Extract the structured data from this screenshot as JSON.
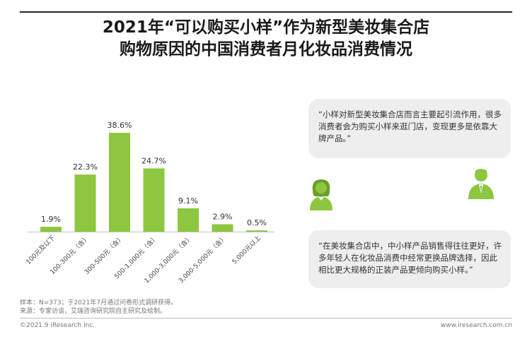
{
  "title_line1": "2021年“可以购买小样”作为新型美妆集合店",
  "title_line2": "购物原因的中国消费者月化妆品消费情况",
  "chart_data": {
    "type": "bar",
    "categories": [
      "100元及以下",
      "100-300元（含）",
      "300-500元（含）",
      "500-1,000元（含）",
      "1,000-3,000元（含）",
      "3,000-5,000元（含）",
      "5,000元以上"
    ],
    "values": [
      1.9,
      22.3,
      38.6,
      24.7,
      9.1,
      2.9,
      0.5
    ],
    "value_labels": [
      "1.9%",
      "22.3%",
      "38.6%",
      "24.7%",
      "9.1%",
      "2.9%",
      "0.5%"
    ],
    "unit": "%",
    "ylim": [
      0,
      40
    ],
    "grid": false,
    "bar_color": "#8dc63f"
  },
  "quotes": {
    "top": "“小样对新型美妆集合店而言主要起引流作用，很多消费者会为购买小样来逛门店，变现更多是依靠大牌产品。”",
    "bottom": "“在美妆集合店中，中小样产品销售得往往更好，许多年轻人在化妆品消费中经常更换品牌选择，因此相比更大规格的正装产品更倾向购买小样。”"
  },
  "icons": {
    "female": "female-person-icon",
    "male": "male-person-icon",
    "icon_color": "#8dc63f"
  },
  "notes": {
    "sample": "样本：N=373；于2021年7月通过问卷形式调研获得。",
    "source": "来源：专家访谈，艾瑞咨询研究院自主研究及绘制。"
  },
  "footer": {
    "left": "©2021.9 iResearch Inc.",
    "right": "www.iresearch.com.cn"
  }
}
